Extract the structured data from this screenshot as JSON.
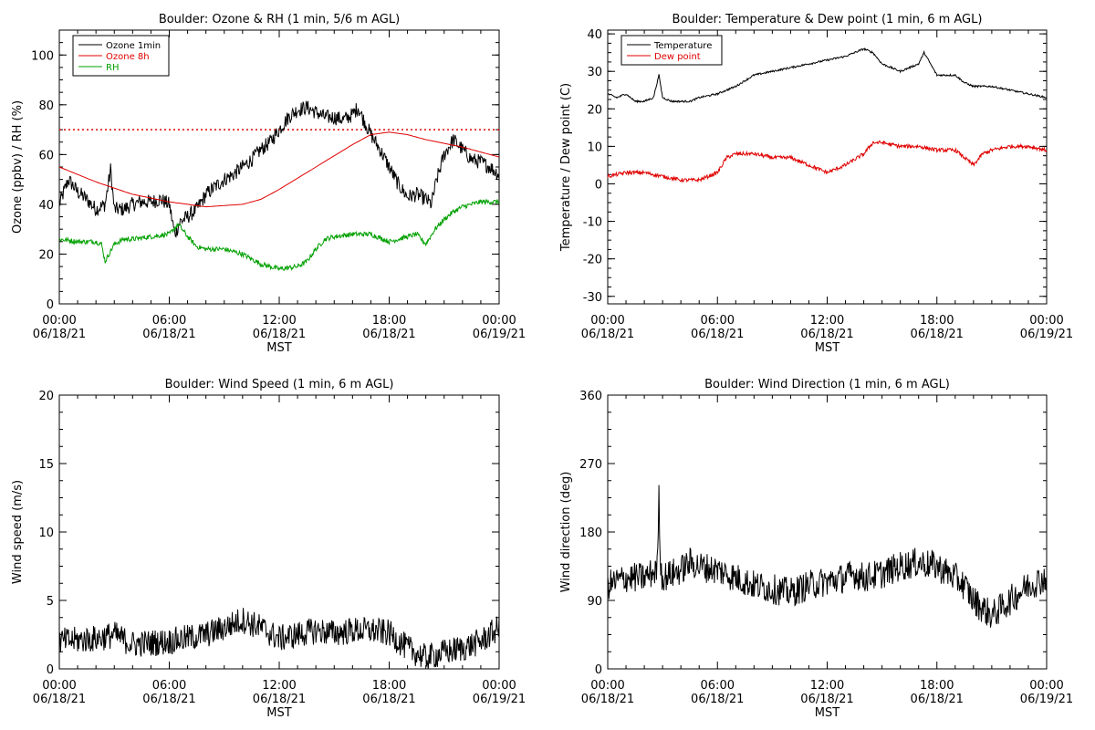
{
  "chart_data": [
    {
      "id": "ozone_rh",
      "type": "line",
      "title": "Boulder: Ozone & RH (1 min, 5/6 m AGL)",
      "xlabel": "MST",
      "ylabel": "Ozone (ppbv) / RH (%)",
      "xlim": [
        0,
        24
      ],
      "ylim": [
        0,
        110
      ],
      "yticks": [
        0,
        20,
        40,
        60,
        80,
        100
      ],
      "xticks": [
        0,
        6,
        12,
        18,
        24
      ],
      "xtick_labels": [
        [
          "00:00",
          "06/18/21"
        ],
        [
          "06:00",
          "06/18/21"
        ],
        [
          "12:00",
          "06/18/21"
        ],
        [
          "18:00",
          "06/18/21"
        ],
        [
          "00:00",
          "06/19/21"
        ]
      ],
      "legend_position": "top-left",
      "hline": {
        "y": 70,
        "color": "#e00000",
        "style": "dotted"
      },
      "series": [
        {
          "name": "Ozone 1min",
          "color": "#000000",
          "noise": 3,
          "x": [
            0,
            0.5,
            1,
            1.5,
            2,
            2.5,
            2.8,
            3,
            3.5,
            4,
            4.5,
            5,
            5.5,
            6,
            6.3,
            6.6,
            7,
            7.5,
            8,
            8.5,
            9,
            9.5,
            10,
            10.5,
            11,
            11.5,
            12,
            12.5,
            13,
            13.5,
            14,
            14.5,
            15,
            15.5,
            16,
            16.3,
            16.6,
            17,
            17.5,
            18,
            18.5,
            19,
            19.5,
            20,
            20.3,
            20.6,
            21,
            21.5,
            22,
            22.5,
            23,
            23.5,
            24
          ],
          "y": [
            40,
            50,
            45,
            42,
            38,
            40,
            54,
            38,
            38,
            40,
            41,
            41,
            42,
            40,
            28,
            33,
            35,
            38,
            44,
            47,
            50,
            52,
            55,
            58,
            62,
            65,
            70,
            75,
            78,
            79,
            77,
            75,
            75,
            74,
            76,
            79,
            74,
            68,
            62,
            55,
            48,
            43,
            44,
            42,
            40,
            50,
            60,
            66,
            62,
            58,
            57,
            55,
            52
          ]
        },
        {
          "name": "Ozone 8h",
          "color": "#e00000",
          "noise": 0,
          "x": [
            0,
            2,
            4,
            6,
            8,
            10,
            11,
            12,
            14,
            16,
            17,
            18,
            19,
            20,
            22,
            24
          ],
          "y": [
            55,
            49,
            44,
            41,
            39,
            40,
            42,
            46,
            55,
            64,
            68,
            69,
            68,
            66,
            63,
            59
          ]
        },
        {
          "name": "RH",
          "color": "#00a000",
          "noise": 1,
          "x": [
            0,
            1,
            2,
            2.3,
            2.5,
            3,
            3.5,
            4,
            5,
            6,
            6.5,
            7,
            7.5,
            8,
            9,
            10,
            11,
            12,
            13,
            13.5,
            14,
            14.5,
            15,
            16,
            17,
            18,
            19,
            19.5,
            20,
            20.5,
            21,
            21.5,
            22,
            23,
            24
          ],
          "y": [
            26,
            25,
            25,
            24,
            17,
            24,
            26,
            26,
            27,
            28,
            32,
            27,
            23,
            22,
            22,
            20,
            16,
            14,
            15,
            17,
            22,
            26,
            27,
            28,
            28,
            25,
            27,
            28,
            24,
            30,
            34,
            37,
            39,
            41,
            41
          ]
        }
      ]
    },
    {
      "id": "temp_dew",
      "type": "line",
      "title": "Boulder: Temperature & Dew point (1 min, 6 m AGL)",
      "xlabel": "MST",
      "ylabel": "Temperature / Dew point (C)",
      "xlim": [
        0,
        24
      ],
      "ylim": [
        -32,
        41
      ],
      "yticks": [
        -30,
        -20,
        -10,
        0,
        10,
        20,
        30,
        40
      ],
      "xticks": [
        0,
        6,
        12,
        18,
        24
      ],
      "xtick_labels": [
        [
          "00:00",
          "06/18/21"
        ],
        [
          "06:00",
          "06/18/21"
        ],
        [
          "12:00",
          "06/18/21"
        ],
        [
          "18:00",
          "06/18/21"
        ],
        [
          "00:00",
          "06/19/21"
        ]
      ],
      "legend_position": "top-left",
      "series": [
        {
          "name": "Temperature",
          "color": "#000000",
          "noise": 0.25,
          "x": [
            0,
            0.5,
            1,
            1.5,
            2,
            2.5,
            2.8,
            3,
            3.5,
            4,
            4.5,
            5,
            6,
            7,
            8,
            9,
            10,
            11,
            12,
            13,
            13.5,
            14,
            14.5,
            15,
            16,
            17,
            17.3,
            18,
            19,
            19.5,
            20,
            21,
            22,
            23,
            24
          ],
          "y": [
            24,
            23,
            24,
            22,
            22,
            23,
            29,
            23,
            22,
            22,
            22,
            23,
            24,
            26,
            29,
            30,
            31,
            32,
            33,
            34,
            35,
            36,
            35,
            32,
            30,
            32,
            35,
            29,
            29,
            27,
            26,
            26,
            25,
            24,
            23
          ]
        },
        {
          "name": "Dew point",
          "color": "#e00000",
          "noise": 0.5,
          "x": [
            0,
            1,
            2,
            3,
            4,
            5,
            6,
            6.5,
            7,
            8,
            9,
            10,
            11,
            12,
            13,
            14,
            14.5,
            15,
            16,
            17,
            18,
            19,
            20,
            20.5,
            21,
            22,
            23,
            24
          ],
          "y": [
            2,
            3,
            3,
            2,
            1,
            1,
            3,
            7,
            8,
            8,
            7,
            7,
            5,
            3,
            5,
            8,
            11,
            11,
            10,
            10,
            9,
            9,
            5,
            8,
            9,
            10,
            10,
            9
          ]
        }
      ]
    },
    {
      "id": "wind_speed",
      "type": "line",
      "title": "Boulder: Wind Speed (1 min, 6 m AGL)",
      "xlabel": "MST",
      "ylabel": "Wind speed (m/s)",
      "xlim": [
        0,
        24
      ],
      "ylim": [
        0,
        20
      ],
      "yticks": [
        0,
        5,
        10,
        15,
        20
      ],
      "xticks": [
        0,
        6,
        12,
        18,
        24
      ],
      "xtick_labels": [
        [
          "00:00",
          "06/18/21"
        ],
        [
          "06:00",
          "06/18/21"
        ],
        [
          "12:00",
          "06/18/21"
        ],
        [
          "18:00",
          "06/18/21"
        ],
        [
          "00:00",
          "06/19/21"
        ]
      ],
      "series": [
        {
          "name": "",
          "color": "#000000",
          "noise": 1.0,
          "x": [
            0,
            2,
            3,
            4,
            6,
            8,
            9,
            10,
            11,
            12,
            13,
            14,
            15,
            16,
            17,
            18,
            19,
            20,
            21,
            22,
            23,
            24
          ],
          "y": [
            2,
            2.2,
            2.5,
            1.8,
            2,
            2.5,
            3,
            3.6,
            3,
            2.2,
            2.5,
            2.8,
            2.6,
            2.8,
            2.8,
            2.6,
            1.5,
            0.8,
            1.2,
            1.5,
            2,
            3
          ]
        }
      ]
    },
    {
      "id": "wind_dir",
      "type": "line",
      "title": "Boulder: Wind Direction (1 min, 6 m AGL)",
      "xlabel": "MST",
      "ylabel": "Wind direction (deg)",
      "xlim": [
        0,
        24
      ],
      "ylim": [
        0,
        360
      ],
      "yticks": [
        0,
        90,
        180,
        270,
        360
      ],
      "xticks": [
        0,
        6,
        12,
        18,
        24
      ],
      "xtick_labels": [
        [
          "00:00",
          "06/18/21"
        ],
        [
          "06:00",
          "06/18/21"
        ],
        [
          "12:00",
          "06/18/21"
        ],
        [
          "18:00",
          "06/18/21"
        ],
        [
          "00:00",
          "06/19/21"
        ]
      ],
      "series": [
        {
          "name": "",
          "color": "#000000",
          "noise": 20,
          "x": [
            0,
            1,
            2,
            2.7,
            2.8,
            2.9,
            3,
            4,
            4.5,
            5,
            6,
            7,
            8,
            9,
            10,
            11,
            12,
            13,
            13.5,
            14,
            15,
            16,
            17,
            18,
            19,
            19.5,
            20,
            21,
            22,
            23,
            24
          ],
          "y": [
            110,
            120,
            120,
            130,
            225,
            130,
            120,
            130,
            140,
            135,
            130,
            120,
            110,
            105,
            100,
            110,
            115,
            120,
            125,
            120,
            125,
            135,
            140,
            135,
            120,
            110,
            90,
            70,
            90,
            110,
            120
          ]
        }
      ]
    }
  ]
}
